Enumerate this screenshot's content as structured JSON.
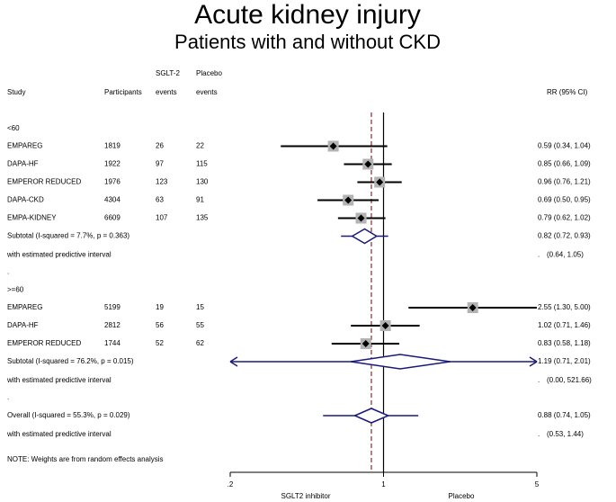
{
  "chart_data": {
    "type": "forest",
    "title": "Acute kidney injury",
    "subtitle": "Patients with and without CKD",
    "columns": {
      "study": "Study",
      "participants": "Participants",
      "sglt2_top": "SGLT-2",
      "sglt2": "events",
      "placebo_top": "Placebo",
      "placebo": "events",
      "rr": "RR (95% CI)"
    },
    "groups": [
      {
        "label": "<60",
        "studies": [
          {
            "name": "EMPAREG",
            "participants": 1819,
            "sglt2": 26,
            "placebo": 22,
            "rr": 0.59,
            "lo": 0.34,
            "hi": 1.04,
            "ci_label": "0.59 (0.34, 1.04)"
          },
          {
            "name": "DAPA-HF",
            "participants": 1922,
            "sglt2": 97,
            "placebo": 115,
            "rr": 0.85,
            "lo": 0.66,
            "hi": 1.09,
            "ci_label": "0.85 (0.66, 1.09)"
          },
          {
            "name": "EMPEROR REDUCED",
            "participants": 1976,
            "sglt2": 123,
            "placebo": 130,
            "rr": 0.96,
            "lo": 0.76,
            "hi": 1.21,
            "ci_label": "0.96 (0.76, 1.21)"
          },
          {
            "name": "DAPA-CKD",
            "participants": 4304,
            "sglt2": 63,
            "placebo": 91,
            "rr": 0.69,
            "lo": 0.5,
            "hi": 0.95,
            "ci_label": "0.69 (0.50, 0.95)"
          },
          {
            "name": "EMPA-KIDNEY",
            "participants": 6609,
            "sglt2": 107,
            "placebo": 135,
            "rr": 0.79,
            "lo": 0.62,
            "hi": 1.02,
            "ci_label": "0.79 (0.62, 1.02)"
          }
        ],
        "subtotal": {
          "label": "Subtotal  (I-squared = 7.7%, p = 0.363)",
          "rr": 0.82,
          "lo": 0.72,
          "hi": 0.93,
          "ci_label": "0.82 (0.72, 0.93)",
          "pi_text": "with estimated predictive interval",
          "pi_dot": ".",
          "pi_lo": 0.64,
          "pi_hi": 1.05,
          "pi_label": "(0.64, 1.05)"
        },
        "spacer": "."
      },
      {
        "label": ">=60",
        "studies": [
          {
            "name": "EMPAREG",
            "participants": 5199,
            "sglt2": 19,
            "placebo": 15,
            "rr": 2.55,
            "lo": 1.3,
            "hi": 5.0,
            "ci_label": "2.55 (1.30, 5.00)"
          },
          {
            "name": "DAPA-HF",
            "participants": 2812,
            "sglt2": 56,
            "placebo": 55,
            "rr": 1.02,
            "lo": 0.71,
            "hi": 1.46,
            "ci_label": "1.02 (0.71, 1.46)"
          },
          {
            "name": "EMPEROR REDUCED",
            "participants": 1744,
            "sglt2": 52,
            "placebo": 62,
            "rr": 0.83,
            "lo": 0.58,
            "hi": 1.18,
            "ci_label": "0.83 (0.58, 1.18)"
          }
        ],
        "subtotal": {
          "label": "Subtotal  (I-squared = 76.2%, p = 0.015)",
          "rr": 1.19,
          "lo": 0.71,
          "hi": 2.01,
          "ci_label": "1.19 (0.71, 2.01)",
          "pi_text": "with estimated predictive interval",
          "pi_dot": ".",
          "pi_lo": 0.0,
          "pi_hi": 521.66,
          "pi_label": "(0.00, 521.66)"
        },
        "spacer": "."
      }
    ],
    "overall": {
      "label": "Overall  (I-squared = 55.3%, p = 0.029)",
      "rr": 0.88,
      "lo": 0.74,
      "hi": 1.05,
      "ci_label": "0.88 (0.74, 1.05)",
      "pi_text": "with estimated predictive interval",
      "pi_dot": ".",
      "pi_lo": 0.53,
      "pi_hi": 1.44,
      "pi_label": "(0.53, 1.44)"
    },
    "note": "NOTE: Weights are from random effects analysis",
    "xlim": [
      0.2,
      5
    ],
    "xticks": [
      {
        "value": 0.2,
        "label": ".2"
      },
      1,
      5
    ],
    "log_x": true,
    "reference_line": 1,
    "x_left_label": "SGLT2 inhibitor",
    "x_right_label": "Placebo",
    "colors": {
      "study": "#000000",
      "box": "#b3b3b3",
      "pooled": "#1a1a7a",
      "dashed": "#8b2a2a"
    }
  }
}
